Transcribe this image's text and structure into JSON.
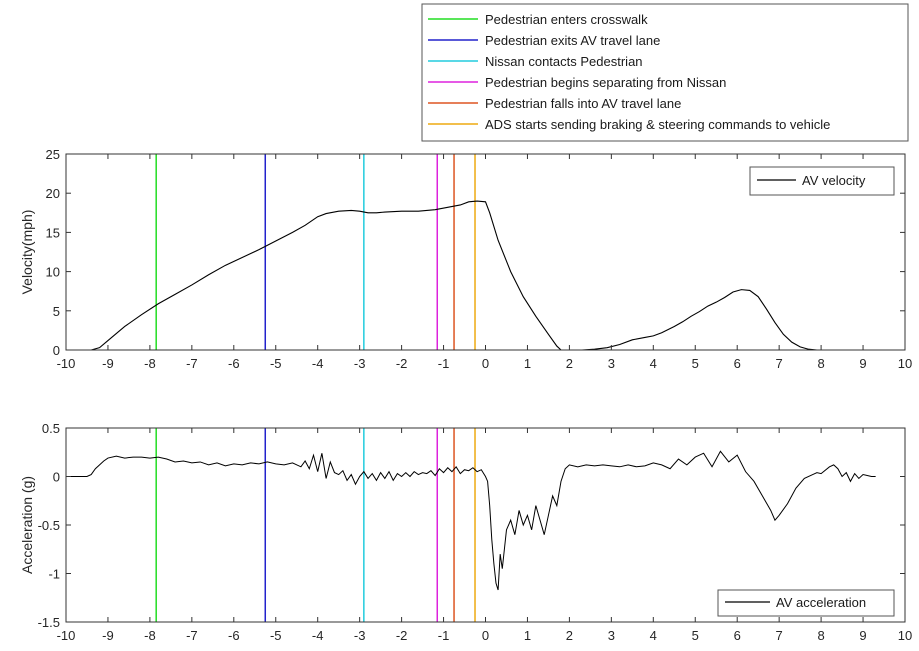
{
  "event_legend": {
    "placement": "top-right",
    "entries": [
      {
        "label": "Pedestrian enters crosswalk",
        "color": "#22dd22",
        "x": -7.85
      },
      {
        "label": "Pedestrian exits AV travel lane",
        "color": "#2222cc",
        "x": -5.25
      },
      {
        "label": "Nissan contacts Pedestrian",
        "color": "#22ccdd",
        "x": -2.9
      },
      {
        "label": "Pedestrian begins separating from Nissan",
        "color": "#dd22dd",
        "x": -1.15
      },
      {
        "label": "Pedestrian falls into AV travel lane",
        "color": "#dd5522",
        "x": -0.75
      },
      {
        "label": "ADS starts sending braking & steering commands to vehicle",
        "color": "#eeaa11",
        "x": -0.25
      }
    ]
  },
  "chart_data": [
    {
      "type": "line",
      "title": "",
      "xlabel": "",
      "ylabel": "Velocity(mph)",
      "xlim": [
        -10,
        10
      ],
      "ylim": [
        0,
        25
      ],
      "xticks": [
        "-10",
        "-9",
        "-8",
        "-7",
        "-6",
        "-5",
        "-4",
        "-3",
        "-2",
        "-1",
        "0",
        "1",
        "2",
        "3",
        "4",
        "5",
        "6",
        "7",
        "8",
        "9",
        "10"
      ],
      "yticks": [
        "0",
        "5",
        "10",
        "15",
        "20",
        "25"
      ],
      "grid": false,
      "legend": "top-right",
      "series": [
        {
          "name": "AV velocity",
          "color": "#000000",
          "x": [
            -9.4,
            -9.2,
            -9.0,
            -8.6,
            -8.2,
            -7.8,
            -7.4,
            -7.0,
            -6.6,
            -6.2,
            -5.8,
            -5.4,
            -5.0,
            -4.6,
            -4.3,
            -4.0,
            -3.8,
            -3.5,
            -3.2,
            -3.0,
            -2.8,
            -2.6,
            -2.4,
            -2.0,
            -1.6,
            -1.2,
            -0.9,
            -0.6,
            -0.4,
            -0.2,
            0.0,
            0.1,
            0.3,
            0.6,
            0.9,
            1.2,
            1.5,
            1.7,
            1.8,
            2.0,
            2.3,
            2.6,
            2.9,
            3.2,
            3.5,
            3.8,
            4.0,
            4.2,
            4.5,
            4.7,
            4.9,
            5.1,
            5.3,
            5.5,
            5.7,
            5.9,
            6.1,
            6.3,
            6.5,
            6.7,
            6.9,
            7.1,
            7.3,
            7.5,
            7.7,
            7.9,
            8.2,
            8.5
          ],
          "y": [
            0,
            0.3,
            1.2,
            3.0,
            4.5,
            5.9,
            7.1,
            8.3,
            9.6,
            10.8,
            11.8,
            12.8,
            13.9,
            15.0,
            15.9,
            17.0,
            17.4,
            17.7,
            17.8,
            17.7,
            17.5,
            17.5,
            17.6,
            17.7,
            17.7,
            17.9,
            18.2,
            18.5,
            18.9,
            19.0,
            18.9,
            17.5,
            14.0,
            10.0,
            6.8,
            4.3,
            2.0,
            0.5,
            0.0,
            0,
            0,
            0.1,
            0.3,
            0.7,
            1.3,
            1.6,
            1.8,
            2.2,
            3.0,
            3.6,
            4.3,
            4.9,
            5.6,
            6.1,
            6.7,
            7.4,
            7.7,
            7.6,
            6.8,
            5.2,
            3.5,
            2.0,
            1.0,
            0.4,
            0.1,
            0,
            0,
            0
          ]
        }
      ]
    },
    {
      "type": "line",
      "title": "",
      "xlabel": "",
      "ylabel": "Acceleration (g)",
      "xlim": [
        -10,
        10
      ],
      "ylim": [
        -1.5,
        0.5
      ],
      "xticks": [
        "-10",
        "-9",
        "-8",
        "-7",
        "-6",
        "-5",
        "-4",
        "-3",
        "-2",
        "-1",
        "0",
        "1",
        "2",
        "3",
        "4",
        "5",
        "6",
        "7",
        "8",
        "9",
        "10"
      ],
      "yticks": [
        "-1.5",
        "-1",
        "-0.5",
        "0",
        "0.5"
      ],
      "grid": false,
      "legend": "bottom-right",
      "series": [
        {
          "name": "AV acceleration",
          "color": "#000000",
          "x": [
            -10.0,
            -9.7,
            -9.5,
            -9.4,
            -9.3,
            -9.2,
            -9.1,
            -9.0,
            -8.8,
            -8.6,
            -8.4,
            -8.2,
            -8.0,
            -7.8,
            -7.6,
            -7.4,
            -7.2,
            -7.0,
            -6.8,
            -6.6,
            -6.4,
            -6.2,
            -6.0,
            -5.8,
            -5.6,
            -5.4,
            -5.2,
            -5.0,
            -4.8,
            -4.6,
            -4.4,
            -4.3,
            -4.2,
            -4.1,
            -4.0,
            -3.9,
            -3.8,
            -3.7,
            -3.6,
            -3.5,
            -3.4,
            -3.3,
            -3.2,
            -3.1,
            -3.0,
            -2.9,
            -2.8,
            -2.7,
            -2.6,
            -2.5,
            -2.4,
            -2.3,
            -2.2,
            -2.1,
            -2.0,
            -1.9,
            -1.8,
            -1.7,
            -1.6,
            -1.5,
            -1.4,
            -1.3,
            -1.2,
            -1.1,
            -1.0,
            -0.9,
            -0.8,
            -0.7,
            -0.6,
            -0.5,
            -0.4,
            -0.3,
            -0.2,
            -0.1,
            0.0,
            0.05,
            0.1,
            0.15,
            0.2,
            0.25,
            0.3,
            0.35,
            0.4,
            0.5,
            0.6,
            0.7,
            0.8,
            0.9,
            1.0,
            1.1,
            1.2,
            1.3,
            1.4,
            1.5,
            1.6,
            1.7,
            1.8,
            1.9,
            2.0,
            2.2,
            2.4,
            2.6,
            2.8,
            3.0,
            3.2,
            3.4,
            3.6,
            3.8,
            4.0,
            4.2,
            4.4,
            4.6,
            4.8,
            5.0,
            5.2,
            5.4,
            5.6,
            5.8,
            6.0,
            6.2,
            6.4,
            6.6,
            6.8,
            6.9,
            7.0,
            7.2,
            7.4,
            7.6,
            7.8,
            7.9,
            8.0,
            8.2,
            8.3,
            8.4,
            8.5,
            8.6,
            8.7,
            8.8,
            8.9,
            9.0,
            9.1,
            9.2,
            9.3
          ],
          "y": [
            0.0,
            0.0,
            0.0,
            0.02,
            0.08,
            0.12,
            0.16,
            0.19,
            0.21,
            0.19,
            0.2,
            0.2,
            0.19,
            0.2,
            0.18,
            0.15,
            0.16,
            0.14,
            0.15,
            0.12,
            0.14,
            0.11,
            0.13,
            0.12,
            0.14,
            0.13,
            0.15,
            0.13,
            0.12,
            0.14,
            0.1,
            0.16,
            0.08,
            0.22,
            0.05,
            0.24,
            -0.02,
            0.15,
            0.04,
            0.02,
            0.06,
            -0.04,
            0.02,
            -0.08,
            0.0,
            0.05,
            -0.02,
            0.03,
            -0.04,
            0.04,
            -0.02,
            0.05,
            -0.04,
            0.03,
            0.0,
            0.04,
            0.0,
            0.05,
            0.02,
            0.04,
            0.03,
            0.06,
            0.01,
            0.08,
            0.04,
            0.09,
            0.05,
            0.1,
            0.03,
            0.07,
            0.06,
            0.09,
            0.05,
            0.07,
            0.0,
            -0.05,
            -0.3,
            -0.65,
            -0.9,
            -1.1,
            -1.17,
            -0.8,
            -0.95,
            -0.55,
            -0.45,
            -0.6,
            -0.35,
            -0.5,
            -0.4,
            -0.55,
            -0.3,
            -0.45,
            -0.6,
            -0.4,
            -0.2,
            -0.3,
            -0.05,
            0.08,
            0.12,
            0.1,
            0.12,
            0.11,
            0.12,
            0.11,
            0.1,
            0.12,
            0.1,
            0.11,
            0.14,
            0.12,
            0.08,
            0.18,
            0.12,
            0.2,
            0.24,
            0.1,
            0.26,
            0.15,
            0.22,
            0.05,
            -0.05,
            -0.2,
            -0.35,
            -0.45,
            -0.4,
            -0.28,
            -0.12,
            -0.02,
            0.02,
            0.04,
            0.03,
            0.1,
            0.12,
            0.08,
            0.0,
            0.04,
            -0.05,
            0.03,
            -0.02,
            0.02,
            0.01,
            0.0,
            0.0
          ]
        }
      ]
    }
  ]
}
